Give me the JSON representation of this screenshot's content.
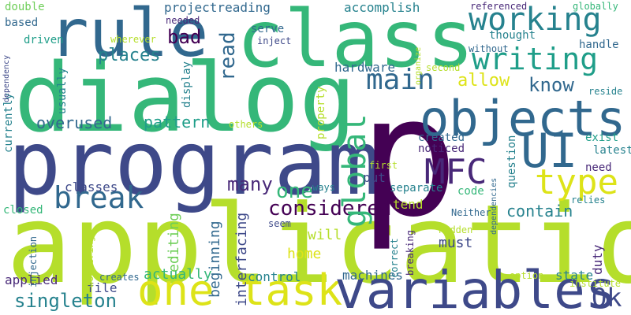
{
  "background": "#ffffff",
  "palette": {
    "lime": "#b5de2b",
    "green": "#6ece58",
    "teal": "#35b779",
    "cyan": "#1f9e89",
    "blue_teal": "#26828e",
    "slate": "#31688e",
    "indigo": "#3e4989",
    "purple": "#482878",
    "dark_purple": "#440154",
    "yellow": "#dde318"
  },
  "words": [
    {
      "text": "application",
      "color": "#b5de2b"
    },
    {
      "text": "dialog",
      "color": "#35b779"
    },
    {
      "text": "program",
      "color": "#3e4989"
    },
    {
      "text": "p",
      "color": "#440154"
    },
    {
      "text": "class",
      "color": "#35b779"
    },
    {
      "text": "objects",
      "color": "#31688e"
    },
    {
      "text": "one task",
      "color": "#dde318"
    },
    {
      "text": "variables",
      "color": "#3e4989"
    },
    {
      "text": "rule",
      "color": "#31688e"
    },
    {
      "text": "UI",
      "color": "#31688e"
    },
    {
      "text": "MFC",
      "color": "#482878"
    },
    {
      "text": "type",
      "color": "#dde318"
    },
    {
      "text": "working",
      "color": "#26828e"
    },
    {
      "text": "writing",
      "color": "#1f9e89"
    },
    {
      "text": "main",
      "color": "#31688e"
    },
    {
      "text": "break",
      "color": "#31688e"
    },
    {
      "text": "considered",
      "color": "#440154"
    },
    {
      "text": "global",
      "color": "#35b779"
    },
    {
      "text": "one",
      "color": "#35b779"
    },
    {
      "text": "Ok",
      "color": "#3e4989"
    },
    {
      "text": "singleton",
      "color": "#26828e"
    },
    {
      "text": "bad",
      "color": "#440154"
    },
    {
      "text": "places",
      "color": "#26828e"
    },
    {
      "text": "read",
      "color": "#31688e"
    },
    {
      "text": "know",
      "color": "#31688e"
    },
    {
      "text": "allow",
      "color": "#dde318"
    },
    {
      "text": "overused",
      "color": "#31688e"
    },
    {
      "text": "pattern",
      "color": "#1f9e89"
    },
    {
      "text": "many",
      "color": "#482878"
    },
    {
      "text": "contain",
      "color": "#26828e"
    },
    {
      "text": "classes",
      "color": "#3e4989"
    },
    {
      "text": "editing",
      "color": "#6ece58"
    },
    {
      "text": "actually",
      "color": "#35b779"
    },
    {
      "text": "interfacing",
      "color": "#3e4989"
    },
    {
      "text": "beginning",
      "color": "#31688e"
    },
    {
      "text": "must",
      "color": "#3e4989"
    },
    {
      "text": "will",
      "color": "#b5de2b"
    },
    {
      "text": "home",
      "color": "#dde318"
    },
    {
      "text": "control",
      "color": "#26828e"
    },
    {
      "text": "machines",
      "color": "#31688e"
    },
    {
      "text": "file",
      "color": "#3e4989"
    },
    {
      "text": "applied",
      "color": "#482878"
    },
    {
      "text": "state",
      "color": "#26828e"
    },
    {
      "text": "duty",
      "color": "#482878"
    },
    {
      "text": "projectreading",
      "color": "#31688e"
    },
    {
      "text": "accomplish",
      "color": "#26828e"
    },
    {
      "text": "serve",
      "color": "#31688e"
    },
    {
      "text": "inject",
      "color": "#3e4989"
    },
    {
      "text": "thought",
      "color": "#26828e"
    },
    {
      "text": "handle",
      "color": "#31688e"
    },
    {
      "text": "hardware",
      "color": "#31688e"
    },
    {
      "text": "display",
      "color": "#26828e"
    },
    {
      "text": "property",
      "color": "#b5de2b"
    },
    {
      "text": "created",
      "color": "#31688e"
    },
    {
      "text": "noticed",
      "color": "#482878"
    },
    {
      "text": "put",
      "color": "#3e4989"
    },
    {
      "text": "separate",
      "color": "#26828e"
    },
    {
      "text": "code",
      "color": "#35b779"
    },
    {
      "text": "tend",
      "color": "#b5de2b"
    },
    {
      "text": "question",
      "color": "#26828e"
    },
    {
      "text": "exist",
      "color": "#1f9e89"
    },
    {
      "text": "latest",
      "color": "#26828e"
    },
    {
      "text": "need",
      "color": "#482878"
    },
    {
      "text": "relies",
      "color": "#26828e"
    },
    {
      "text": "reside",
      "color": "#26828e"
    },
    {
      "text": "double",
      "color": "#6ece58"
    },
    {
      "text": "based",
      "color": "#31688e"
    },
    {
      "text": "driven",
      "color": "#1f9e89"
    },
    {
      "text": "usually",
      "color": "#26828e"
    },
    {
      "text": "currently",
      "color": "#26828e"
    },
    {
      "text": "dependency",
      "color": "#3e4989"
    },
    {
      "text": "closed",
      "color": "#35b779"
    },
    {
      "text": "injection",
      "color": "#31688e"
    },
    {
      "text": "wondering",
      "color": "#b5de2b"
    },
    {
      "text": "creates",
      "color": "#31688e"
    },
    {
      "text": "needed",
      "color": "#482878"
    },
    {
      "text": "wherever",
      "color": "#b5de2b"
    },
    {
      "text": "referenced",
      "color": "#482878"
    },
    {
      "text": "globally",
      "color": "#35b779"
    },
    {
      "text": "without",
      "color": "#31688e"
    },
    {
      "text": "organize",
      "color": "#b5de2b"
    },
    {
      "text": "second",
      "color": "#b5de2b"
    },
    {
      "text": "others",
      "color": "#b5de2b"
    },
    {
      "text": "first",
      "color": "#b5de2b"
    },
    {
      "text": "ways",
      "color": "#26828e"
    },
    {
      "text": "dependencies",
      "color": "#31688e"
    },
    {
      "text": "Neither",
      "color": "#31688e"
    },
    {
      "text": "seem",
      "color": "#3e4989"
    },
    {
      "text": "correct",
      "color": "#26828e"
    },
    {
      "text": "breaking",
      "color": "#482878"
    },
    {
      "text": "hidden",
      "color": "#b5de2b"
    },
    {
      "text": "option",
      "color": "#b5de2b"
    },
    {
      "text": "institute",
      "color": "#b5de2b"
    }
  ]
}
